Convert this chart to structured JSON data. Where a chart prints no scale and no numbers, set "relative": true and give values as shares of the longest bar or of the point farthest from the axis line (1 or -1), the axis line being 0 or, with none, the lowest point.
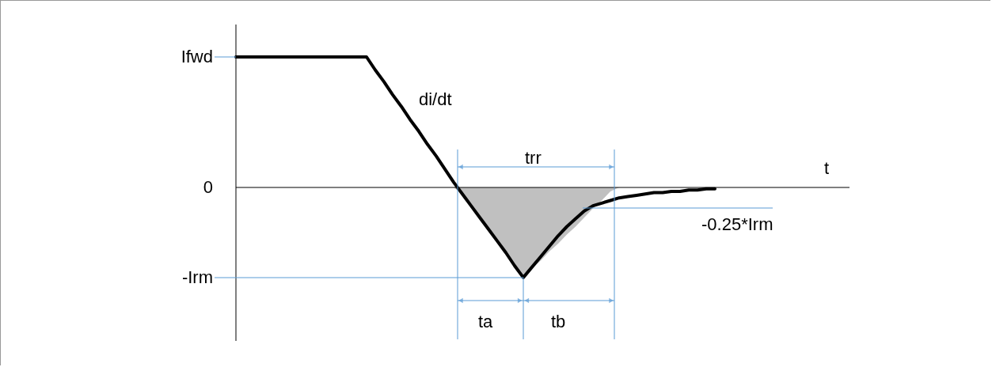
{
  "chart_data": {
    "type": "line",
    "relative": true,
    "categories": [
      null,
      null,
      null,
      null,
      null,
      null,
      null,
      null,
      null,
      null,
      null,
      null,
      null,
      null,
      null,
      null,
      null,
      null,
      null,
      null,
      null,
      null,
      null,
      null,
      null,
      null,
      null,
      null,
      null,
      null,
      null,
      null,
      null,
      null,
      null,
      null,
      null,
      null,
      null,
      null,
      null,
      null,
      null,
      null,
      null,
      null,
      null,
      null,
      null,
      null,
      null,
      null,
      null,
      null,
      null,
      null
    ],
    "series": [
      {
        "type": "area",
        "color": "#c0c0c0",
        "values": [
          null,
          null,
          null,
          null,
          null,
          null,
          null,
          null,
          null,
          null,
          null,
          null,
          null,
          null,
          null,
          null,
          null,
          null,
          null,
          null,
          null,
          null,
          null,
          null,
          null,
          0,
          -0.05,
          -0.14,
          -0.23,
          -0.32,
          -0.41,
          -0.5,
          -0.6,
          -0.69,
          -0.62,
          -0.56,
          -0.49,
          -0.43,
          -0.36,
          -0.3,
          -0.23,
          -0.16,
          -0.1,
          -0.03,
          0,
          null,
          null,
          null,
          null,
          null,
          null,
          null,
          null,
          null,
          null,
          null
        ]
      },
      {
        "color": "#000000",
        "values": [
          1,
          1,
          1,
          1,
          1,
          1,
          1,
          1,
          1,
          1,
          1,
          1,
          1,
          1,
          1,
          1,
          0.9,
          0.81,
          0.71,
          0.62,
          0.52,
          0.43,
          0.33,
          0.24,
          0.14,
          0.04,
          -0.05,
          -0.14,
          -0.23,
          -0.32,
          -0.41,
          -0.5,
          -0.6,
          -0.69,
          -0.61,
          -0.53,
          -0.45,
          -0.37,
          -0.3,
          -0.24,
          -0.18,
          -0.14,
          -0.12,
          -0.1,
          -0.08,
          -0.07,
          -0.06,
          -0.05,
          -0.04,
          -0.04,
          -0.03,
          -0.03,
          -0.02,
          -0.02,
          -0.01,
          -0.01
        ]
      }
    ],
    "annotations": [
      "Ifwd",
      "0",
      "-Irm",
      "-0.25*Irm",
      "di/dt",
      "trr",
      "ta",
      "tb",
      "t"
    ]
  }
}
